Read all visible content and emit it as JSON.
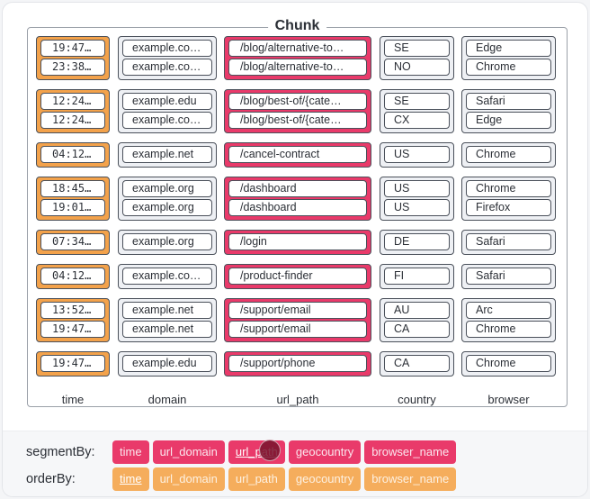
{
  "chunk": {
    "title": "Chunk",
    "columns": [
      {
        "key": "time",
        "label": "time"
      },
      {
        "key": "domain",
        "label": "domain"
      },
      {
        "key": "url_path",
        "label": "url_path"
      },
      {
        "key": "country",
        "label": "country"
      },
      {
        "key": "browser",
        "label": "browser"
      }
    ],
    "groups": [
      {
        "time": [
          "19:47…",
          "23:38…"
        ],
        "domain": [
          "example.co…",
          "example.co…"
        ],
        "url_path": [
          "/blog/alternative-to…",
          "/blog/alternative-to…"
        ],
        "country": [
          "SE",
          "NO"
        ],
        "browser": [
          "Edge",
          "Chrome"
        ]
      },
      {
        "time": [
          "12:24…",
          "12:24…"
        ],
        "domain": [
          "example.edu",
          "example.co…"
        ],
        "url_path": [
          "/blog/best-of/{cate…",
          "/blog/best-of/{cate…"
        ],
        "country": [
          "SE",
          "CX"
        ],
        "browser": [
          "Safari",
          "Edge"
        ]
      },
      {
        "time": [
          "04:12…"
        ],
        "domain": [
          "example.net"
        ],
        "url_path": [
          "/cancel-contract"
        ],
        "country": [
          "US"
        ],
        "browser": [
          "Chrome"
        ]
      },
      {
        "time": [
          "18:45…",
          "19:01…"
        ],
        "domain": [
          "example.org",
          "example.org"
        ],
        "url_path": [
          "/dashboard",
          "/dashboard"
        ],
        "country": [
          "US",
          "US"
        ],
        "browser": [
          "Chrome",
          "Firefox"
        ]
      },
      {
        "time": [
          "07:34…"
        ],
        "domain": [
          "example.org"
        ],
        "url_path": [
          "/login"
        ],
        "country": [
          "DE"
        ],
        "browser": [
          "Safari"
        ]
      },
      {
        "time": [
          "04:12…"
        ],
        "domain": [
          "example.co…"
        ],
        "url_path": [
          "/product-finder"
        ],
        "country": [
          "FI"
        ],
        "browser": [
          "Safari"
        ]
      },
      {
        "time": [
          "13:52…",
          "19:47…"
        ],
        "domain": [
          "example.net",
          "example.net"
        ],
        "url_path": [
          "/support/email",
          "/support/email"
        ],
        "country": [
          "AU",
          "CA"
        ],
        "browser": [
          "Arc",
          "Chrome"
        ]
      },
      {
        "time": [
          "19:47…"
        ],
        "domain": [
          "example.edu"
        ],
        "url_path": [
          "/support/phone"
        ],
        "country": [
          "CA"
        ],
        "browser": [
          "Chrome"
        ]
      }
    ]
  },
  "controls": {
    "segmentBy": {
      "label": "segmentBy:",
      "options": [
        "time",
        "url_domain",
        "url_path",
        "geocountry",
        "browser_name"
      ],
      "active": "url_path"
    },
    "orderBy": {
      "label": "orderBy:",
      "options": [
        "time",
        "url_domain",
        "url_path",
        "geocountry",
        "browser_name"
      ],
      "active": "time"
    }
  },
  "colors": {
    "segment": "#e93a6a",
    "order": "#f5ad5c",
    "neutral": "#eef0f4"
  }
}
